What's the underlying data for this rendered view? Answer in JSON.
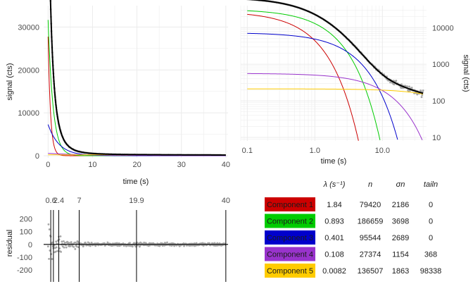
{
  "chart_data": [
    {
      "type": "line",
      "panel": "linear",
      "xlabel": "time (s)",
      "ylabel": "signal (cts)",
      "xlim": [
        -1,
        40.5
      ],
      "ylim": [
        -500,
        35000
      ],
      "xticks": [
        0,
        10,
        20,
        30,
        40
      ],
      "yticks": [
        0,
        10000,
        20000,
        30000
      ],
      "ytick_labels": [
        "0",
        "10000",
        "20000",
        "30000"
      ],
      "grid": true
    },
    {
      "type": "line",
      "panel": "log-log",
      "xlabel": "time (s)",
      "ylabel": "signal (cts)",
      "xscale": "log",
      "yscale": "log",
      "xlim": [
        0.08,
        45
      ],
      "ylim": [
        8,
        40000
      ],
      "xticks": [
        0.1,
        1,
        10
      ],
      "xtick_labels": [
        "0.1",
        "1.0",
        "10.0"
      ],
      "yticks": [
        10,
        100,
        1000,
        10000
      ],
      "ytick_labels": [
        "10",
        "100",
        "1000",
        "10000"
      ],
      "yaxis_side": "right",
      "grid": true
    },
    {
      "type": "scatter",
      "panel": "residual",
      "ylabel": "residual",
      "xlim": [
        -1,
        40.5
      ],
      "ylim": [
        -250,
        270
      ],
      "yticks": [
        -200,
        -100,
        0,
        100,
        200
      ],
      "ytick_labels": [
        "-200",
        "-100",
        "0",
        "100",
        "200"
      ],
      "vlines": [
        0.6,
        1.2,
        2.4,
        7,
        19.9,
        40
      ],
      "top_labels": [
        {
          "x": 0.6,
          "text": "0.6"
        },
        {
          "x": 2.4,
          "text": "2.4"
        },
        {
          "x": 7,
          "text": "7"
        },
        {
          "x": 19.9,
          "text": "19.9"
        },
        {
          "x": 40,
          "text": "40"
        }
      ],
      "grid": false
    },
    {
      "type": "table",
      "columns": [
        "λ (s⁻¹)",
        "n",
        "σn",
        "tailn"
      ],
      "rows": [
        {
          "name": "Component 1",
          "color": "#cc0000",
          "lambda": "1.84",
          "n": "79420",
          "sigma": "2186",
          "tail": "0"
        },
        {
          "name": "Component 2",
          "color": "#00cc00",
          "lambda": "0.893",
          "n": "186659",
          "sigma": "3698",
          "tail": "0"
        },
        {
          "name": "Component 3",
          "color": "#0000cc",
          "lambda": "0.401",
          "n": "95544",
          "sigma": "2689",
          "tail": "0"
        },
        {
          "name": "Component 4",
          "color": "#9933cc",
          "lambda": "0.108",
          "n": "27374",
          "sigma": "1154",
          "tail": "368"
        },
        {
          "name": "Component 5",
          "color": "#ffcc00",
          "lambda": "0.0082",
          "n": "136507",
          "sigma": "1863",
          "tail": "98338"
        }
      ]
    }
  ],
  "colors": {
    "data_points": "#a6a6a6",
    "fit_total": "#000000",
    "grid": "#ebebeb"
  }
}
